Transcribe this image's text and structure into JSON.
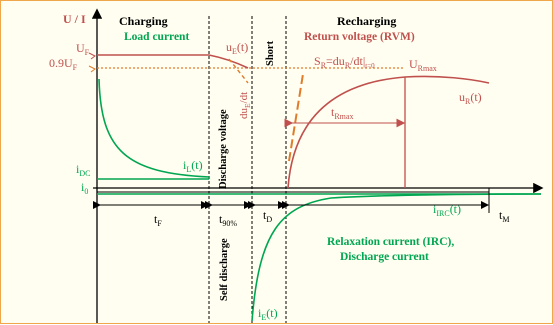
{
  "colors": {
    "red": "#c0504d",
    "dashed_orange": "#e07b2a",
    "green": "#00a651",
    "black": "#000000",
    "frame_border": "#f0a64a",
    "background": "#fffef0"
  },
  "axes": {
    "y_label": "U / I"
  },
  "sections": {
    "charging": "Charging",
    "load_current": "Load current",
    "recharging": "Recharging",
    "return_voltage": "Return voltage (RVM)",
    "discharge_voltage": "Discharge voltage",
    "short": "Short",
    "self_discharge": "Self discharge",
    "relaxation_line1": "Relaxation current (IRC),",
    "relaxation_line2": "Discharge current"
  },
  "labels": {
    "uf_main": "U",
    "uf_sub": "F",
    "u09_main": "0.9U",
    "u09_sub": "F",
    "idc_main": "i",
    "idc_sub": "DC",
    "i0_main": "i",
    "i0_sub": "0",
    "il_main": "i",
    "il_sub": "L",
    "il_tail": "(t)",
    "ue_main": "u",
    "ue_sub": "E",
    "ue_tail": "(t)",
    "due_dt": "du",
    "due_sub": "E",
    "due_tail": "/dt",
    "sr_main": "S",
    "sr_sub": "R",
    "sr_eq": "=du",
    "sr_sub2": "R",
    "sr_tail": "/dt|",
    "sr_sub3": "t=0",
    "urmax_main": "U",
    "urmax_sub": "Rmax",
    "ur_main": "u",
    "ur_sub": "R",
    "ur_tail": "(t)",
    "trmax_main": "t",
    "trmax_sub": "Rmax",
    "tf_main": "t",
    "tf_sub": "F",
    "t90_main": "t",
    "t90_sub": "90%",
    "td_main": "t",
    "td_sub": "D",
    "tm_main": "t",
    "tm_sub": "M",
    "iirc_main": "i",
    "iirc_sub": "IRC",
    "iirc_tail": "(t)",
    "ie_main": "i",
    "ie_sub": "E",
    "ie_tail": "(t)"
  }
}
